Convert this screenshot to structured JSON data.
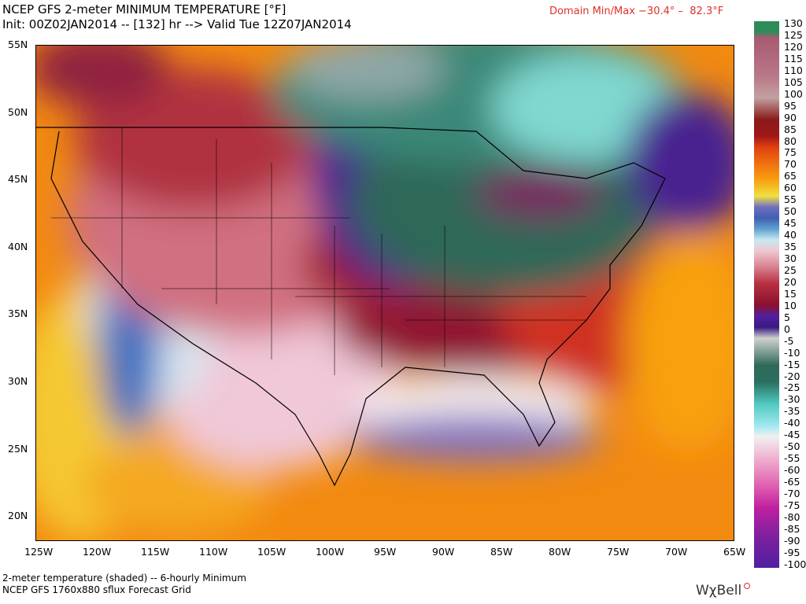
{
  "header": {
    "title": "NCEP GFS 2-meter MINIMUM TEMPERATURE [°F]",
    "subtitle": "Init: 00Z02JAN2014 -- [132] hr --> Valid Tue 12Z07JAN2014",
    "domain_minmax": "Domain Min/Max −30.4° –  82.3°F"
  },
  "map": {
    "lat_labels": [
      "55N",
      "50N",
      "45N",
      "40N",
      "35N",
      "30N",
      "25N",
      "20N"
    ],
    "lon_labels": [
      "125W",
      "120W",
      "115W",
      "110W",
      "105W",
      "100W",
      "95W",
      "90W",
      "85W",
      "80W",
      "75W",
      "70W",
      "65W"
    ]
  },
  "colorbar": {
    "labels": [
      "130",
      "125",
      "120",
      "115",
      "110",
      "105",
      "100",
      "95",
      "90",
      "85",
      "80",
      "75",
      "70",
      "65",
      "60",
      "55",
      "50",
      "45",
      "40",
      "35",
      "30",
      "25",
      "20",
      "15",
      "10",
      "5",
      "0",
      "-5",
      "-10",
      "-15",
      "-20",
      "-25",
      "-30",
      "-35",
      "-40",
      "-45",
      "-50",
      "-55",
      "-60",
      "-65",
      "-70",
      "-75",
      "-80",
      "-85",
      "-90",
      "-95",
      "-100"
    ]
  },
  "footer": {
    "line1": "2-meter temperature (shaded) -- 6-hourly Minimum",
    "line2": "NCEP GFS 1760x880 sflux Forecast Grid",
    "logo": "WχBell"
  }
}
